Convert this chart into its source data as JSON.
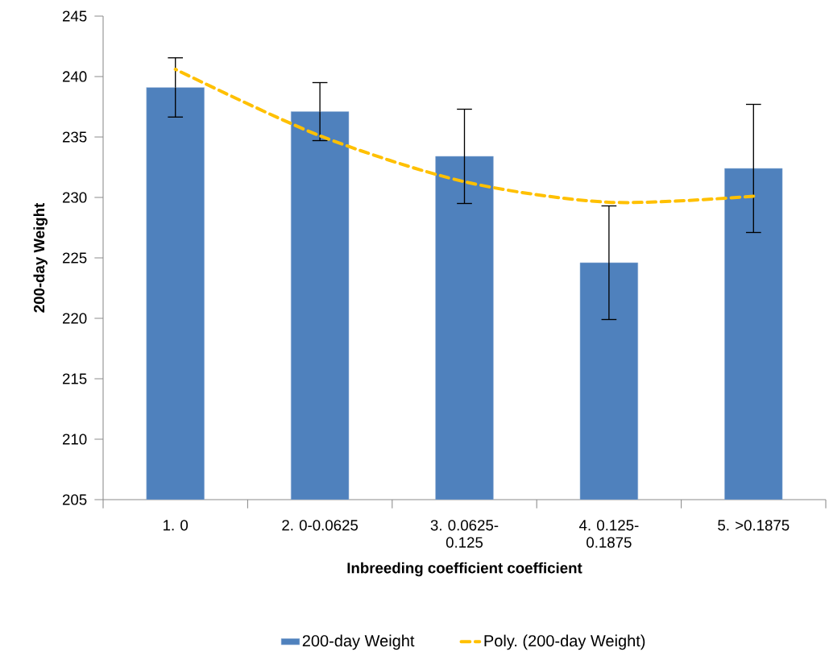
{
  "chart_data": {
    "type": "bar",
    "xlabel": "Inbreeding coefficient coefficient",
    "ylabel": "200-day Weight",
    "categories": [
      "1. 0",
      "2. 0-0.0625",
      "3. 0.0625-0.125",
      "4. 0.125-0.1875",
      "5. >0.1875"
    ],
    "series": [
      {
        "name": "200-day Weight",
        "color": "#4f81bd",
        "values": [
          239.1,
          237.1,
          233.4,
          224.6,
          232.4
        ],
        "errors": [
          2.45,
          2.4,
          3.9,
          4.7,
          5.3
        ]
      },
      {
        "name": "Poly. (200-day Weight)",
        "type": "line",
        "color": "#ffc000",
        "line_style": "dashed",
        "values": [
          240.6,
          235.1,
          231.3,
          229.6,
          230.1
        ]
      }
    ],
    "ylim": [
      205,
      245
    ],
    "yticks": [
      205,
      210,
      215,
      220,
      225,
      230,
      235,
      240,
      245
    ],
    "grid": false,
    "legend": "bottom"
  }
}
